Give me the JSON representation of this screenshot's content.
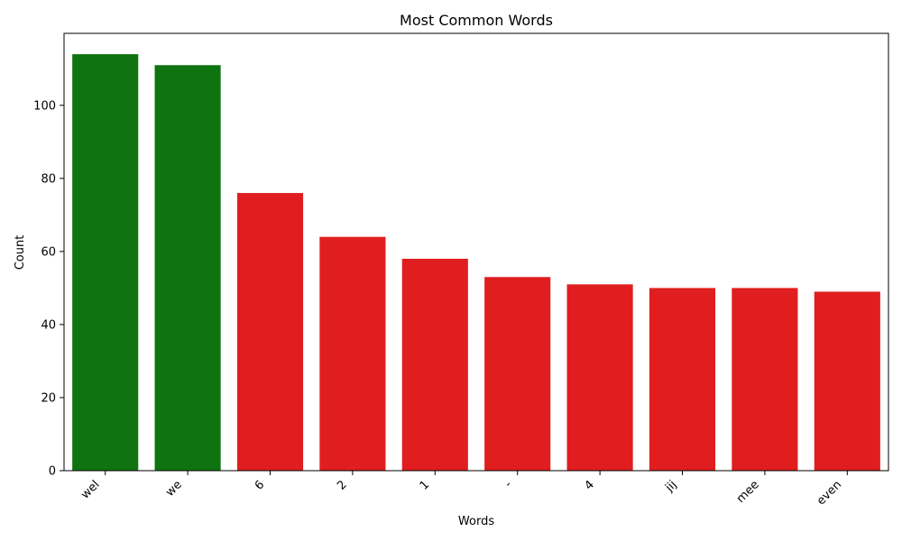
{
  "chart_data": {
    "type": "bar",
    "title": "Most Common Words",
    "xlabel": "Words",
    "ylabel": "Count",
    "categories": [
      "wel",
      "we",
      "6",
      "2",
      "1",
      "-",
      "4",
      "jij",
      "mee",
      "even"
    ],
    "values": [
      114,
      111,
      76,
      64,
      58,
      53,
      51,
      50,
      50,
      49
    ],
    "bar_colors": [
      "#0f7410",
      "#0f7410",
      "#e01e1f",
      "#e01e1f",
      "#e01e1f",
      "#e01e1f",
      "#e01e1f",
      "#e01e1f",
      "#e01e1f",
      "#e01e1f"
    ],
    "ylim": [
      0,
      119.7
    ],
    "yticks": [
      0,
      20,
      40,
      60,
      80,
      100
    ],
    "grid": false,
    "legend": "none"
  }
}
